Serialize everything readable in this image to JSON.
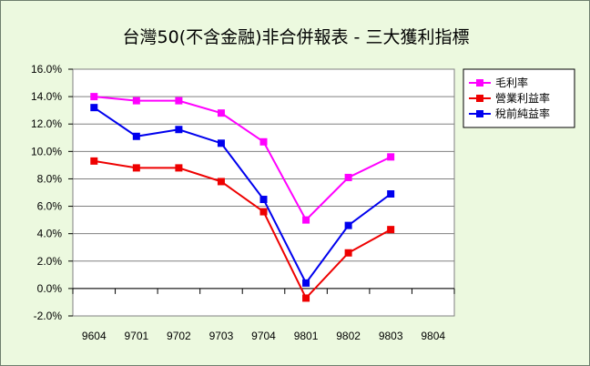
{
  "chart_data": {
    "type": "line",
    "title": "台灣50(不含金融)非合併報表 - 三大獲利指標",
    "categories": [
      "9604",
      "9701",
      "9702",
      "9703",
      "9704",
      "9801",
      "9802",
      "9803",
      "9804"
    ],
    "ylim": [
      -0.02,
      0.16
    ],
    "y_ticks": [
      "-2.0%",
      "0.0%",
      "2.0%",
      "4.0%",
      "6.0%",
      "8.0%",
      "10.0%",
      "12.0%",
      "14.0%",
      "16.0%"
    ],
    "grid": "horizontal",
    "legend_position": "top-right",
    "series": [
      {
        "name": "毛利率",
        "color": "#ff00ff",
        "values": [
          0.14,
          0.137,
          0.137,
          0.128,
          0.107,
          0.05,
          0.081,
          0.096,
          null
        ]
      },
      {
        "name": "營業利益率",
        "color": "#ee0000",
        "values": [
          0.093,
          0.088,
          0.088,
          0.078,
          0.056,
          -0.007,
          0.026,
          0.043,
          null
        ]
      },
      {
        "name": "稅前純益率",
        "color": "#0000ee",
        "values": [
          0.132,
          0.111,
          0.116,
          0.106,
          0.065,
          0.004,
          0.046,
          0.069,
          null
        ]
      }
    ]
  },
  "colors": {
    "background": "#ecf9df",
    "plot_area": "#ffffff",
    "gridline": "#808080"
  }
}
